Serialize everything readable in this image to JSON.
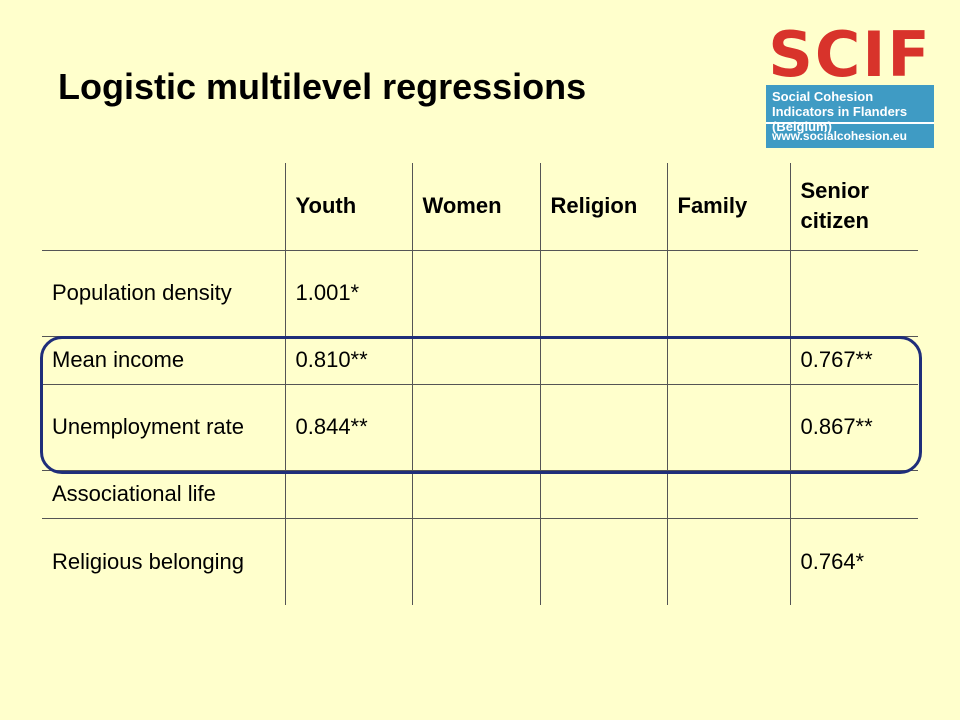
{
  "title": "Logistic multilevel regressions",
  "logo": {
    "mark": "SCIF",
    "name": "Social Cohesion Indicators in Flanders (Belgium)",
    "url": "www.socialcohesion.eu"
  },
  "table": {
    "columns": [
      "Youth",
      "Women",
      "Religion",
      "Family",
      "Senior citizen"
    ],
    "rows": [
      [
        "Population density",
        "1.001*",
        null,
        null,
        null,
        null
      ],
      [
        "Mean income",
        "0.810**",
        null,
        null,
        null,
        "0.767**"
      ],
      [
        "Unemployment rate",
        "0.844**",
        null,
        null,
        null,
        "0.867**"
      ],
      [
        "Associational life",
        null,
        null,
        null,
        null,
        null
      ],
      [
        "Religious belonging",
        null,
        null,
        null,
        null,
        "0.764*"
      ]
    ]
  }
}
